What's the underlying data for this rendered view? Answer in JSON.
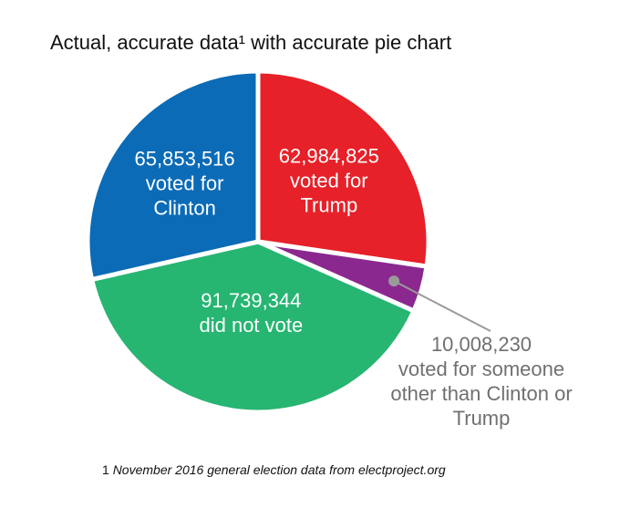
{
  "chart_data": {
    "type": "pie",
    "title": "Actual, accurate data¹ with accurate pie chart",
    "categories": [
      "voted for Trump",
      "voted for someone other than Clinton or Trump",
      "did not vote",
      "voted for Clinton"
    ],
    "values": [
      62984825,
      10008230,
      91739344,
      65853516
    ],
    "value_labels": [
      "62,984,825",
      "10,008,230",
      "91,739,344",
      "65,853,516"
    ],
    "colors": [
      "#e62129",
      "#8b288f",
      "#27b572",
      "#0b6bb6"
    ],
    "footnote": {
      "marker": "1",
      "text": "November 2016 general election data from electproject.org"
    }
  }
}
